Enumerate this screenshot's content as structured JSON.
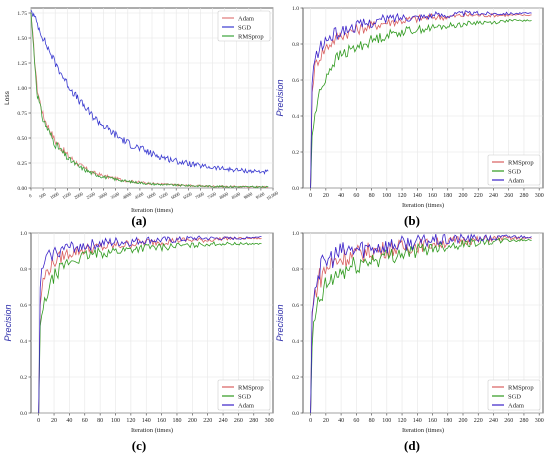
{
  "figure_labels": [
    "(a)",
    "(b)",
    "(c)",
    "(d)"
  ],
  "colors": {
    "Adam": "#3b22c9",
    "SGD": "#2f9a1e",
    "RMSprop": "#d95f5f",
    "SGD_a": "#c050c0",
    "Adam_a": "#e07a7a",
    "RMSprop_a": "#3aa23a",
    "loss_sgd": "#3b3bd0"
  },
  "chart_data": [
    {
      "id": "a",
      "type": "line",
      "title": "",
      "xlabel": "Iteration (times)",
      "ylabel": "Loss",
      "xlim": [
        0,
        10000
      ],
      "ylim": [
        0,
        1.8
      ],
      "x_ticks": [
        0,
        500,
        1000,
        1500,
        2000,
        2500,
        3000,
        3500,
        4000,
        4500,
        5000,
        5500,
        6000,
        6500,
        7000,
        7500,
        8000,
        8500,
        9000,
        9500,
        10000
      ],
      "x_tick_labels": [
        "0",
        "500",
        "1000",
        "1500",
        "2000",
        "2500",
        "3000",
        "3500",
        "4000",
        "4500",
        "5000",
        "5500",
        "6000",
        "6500",
        "7000",
        "7500",
        "8000",
        "8500",
        "9000",
        "9500",
        "10,000"
      ],
      "y_ticks": [
        0.0,
        0.25,
        0.5,
        0.75,
        1.0,
        1.25,
        1.5,
        1.75
      ],
      "y_tick_labels": [
        "0.00",
        "0.25",
        "0.50",
        "0.75",
        "1.00",
        "1.25",
        "1.50",
        "1.75"
      ],
      "grid": true,
      "legend_position": "top-right",
      "series": [
        {
          "name": "Adam",
          "color": "#e07a7a",
          "x": [
            0,
            250,
            500,
            1000,
            1500,
            2000,
            2500,
            3000,
            4000,
            5000,
            6000,
            7000,
            8000,
            9000,
            9800
          ],
          "y": [
            1.75,
            1.0,
            0.72,
            0.47,
            0.33,
            0.23,
            0.16,
            0.12,
            0.07,
            0.045,
            0.03,
            0.02,
            0.015,
            0.012,
            0.01
          ]
        },
        {
          "name": "SGD",
          "color": "#3b3bd0",
          "x": [
            0,
            250,
            500,
            1000,
            1500,
            2000,
            2500,
            3000,
            3500,
            4000,
            5000,
            6000,
            7000,
            8000,
            9000,
            9800
          ],
          "y": [
            1.78,
            1.65,
            1.5,
            1.25,
            1.04,
            0.87,
            0.73,
            0.62,
            0.53,
            0.45,
            0.34,
            0.27,
            0.22,
            0.19,
            0.17,
            0.16
          ]
        },
        {
          "name": "RMSprop",
          "color": "#3aa23a",
          "x": [
            0,
            250,
            500,
            1000,
            1500,
            2000,
            2500,
            3000,
            4000,
            5000,
            6000,
            7000,
            8000,
            9000,
            9800
          ],
          "y": [
            1.75,
            0.95,
            0.68,
            0.44,
            0.3,
            0.21,
            0.15,
            0.11,
            0.065,
            0.04,
            0.028,
            0.02,
            0.014,
            0.011,
            0.009
          ]
        }
      ]
    },
    {
      "id": "b",
      "type": "line",
      "title": "",
      "xlabel": "Iteration (times)",
      "ylabel": "Precision",
      "xlim": [
        -10,
        305
      ],
      "ylim": [
        0,
        1.0
      ],
      "x_ticks": [
        0,
        20,
        40,
        60,
        80,
        100,
        120,
        140,
        160,
        180,
        200,
        220,
        240,
        260,
        280,
        300
      ],
      "x_tick_labels": [
        "0",
        "20",
        "40",
        "60",
        "80",
        "100",
        "120",
        "140",
        "160",
        "180",
        "200",
        "220",
        "240",
        "260",
        "280",
        "300"
      ],
      "y_ticks": [
        0.0,
        0.2,
        0.4,
        0.6,
        0.8,
        1.0
      ],
      "y_tick_labels": [
        "0.0",
        "0.2",
        "0.4",
        "0.6",
        "0.8",
        "1.0"
      ],
      "grid": true,
      "legend_position": "bottom-right",
      "series": [
        {
          "name": "RMSprop",
          "color": "#d95f5f",
          "x": [
            0,
            2,
            5,
            10,
            20,
            30,
            40,
            60,
            80,
            100,
            120,
            140,
            160,
            180,
            200,
            220,
            240,
            260,
            290
          ],
          "y": [
            0.0,
            0.55,
            0.66,
            0.72,
            0.78,
            0.82,
            0.85,
            0.88,
            0.9,
            0.92,
            0.93,
            0.94,
            0.95,
            0.95,
            0.96,
            0.96,
            0.96,
            0.96,
            0.96
          ]
        },
        {
          "name": "SGD",
          "color": "#2f9a1e",
          "x": [
            0,
            2,
            5,
            10,
            20,
            30,
            40,
            60,
            80,
            100,
            120,
            140,
            160,
            180,
            200,
            220,
            240,
            260,
            290
          ],
          "y": [
            0.0,
            0.3,
            0.38,
            0.5,
            0.62,
            0.7,
            0.74,
            0.78,
            0.82,
            0.85,
            0.87,
            0.88,
            0.89,
            0.9,
            0.91,
            0.92,
            0.92,
            0.93,
            0.93
          ]
        },
        {
          "name": "Adam",
          "color": "#3b22c9",
          "x": [
            0,
            2,
            5,
            10,
            20,
            30,
            40,
            60,
            80,
            100,
            120,
            140,
            160,
            180,
            200,
            220,
            240,
            260,
            290
          ],
          "y": [
            0.0,
            0.6,
            0.7,
            0.76,
            0.82,
            0.85,
            0.87,
            0.9,
            0.92,
            0.94,
            0.95,
            0.95,
            0.96,
            0.96,
            0.97,
            0.97,
            0.97,
            0.97,
            0.97
          ]
        }
      ]
    },
    {
      "id": "c",
      "type": "line",
      "title": "",
      "xlabel": "Iteration (times)",
      "ylabel": "Precision",
      "xlim": [
        -10,
        305
      ],
      "ylim": [
        0,
        1.0
      ],
      "x_ticks": [
        0,
        20,
        40,
        60,
        80,
        100,
        120,
        140,
        160,
        180,
        200,
        220,
        240,
        260,
        280,
        300
      ],
      "x_tick_labels": [
        "0",
        "20",
        "40",
        "60",
        "80",
        "100",
        "120",
        "140",
        "160",
        "180",
        "200",
        "220",
        "240",
        "260",
        "280",
        "300"
      ],
      "y_ticks": [
        0.0,
        0.2,
        0.4,
        0.6,
        0.8,
        1.0
      ],
      "y_tick_labels": [
        "0.0",
        "0.2",
        "0.4",
        "0.6",
        "0.8",
        "1.0"
      ],
      "grid": true,
      "legend_position": "bottom-right",
      "series": [
        {
          "name": "RMSprop",
          "color": "#d95f5f",
          "x": [
            0,
            2,
            5,
            10,
            20,
            30,
            40,
            60,
            80,
            100,
            120,
            140,
            160,
            180,
            200,
            220,
            240,
            260,
            290
          ],
          "y": [
            0.0,
            0.62,
            0.72,
            0.78,
            0.84,
            0.87,
            0.89,
            0.91,
            0.92,
            0.93,
            0.94,
            0.95,
            0.95,
            0.96,
            0.96,
            0.96,
            0.97,
            0.97,
            0.97
          ]
        },
        {
          "name": "SGD",
          "color": "#2f9a1e",
          "x": [
            0,
            2,
            5,
            10,
            20,
            30,
            40,
            60,
            80,
            100,
            120,
            140,
            160,
            180,
            200,
            220,
            240,
            260,
            290
          ],
          "y": [
            0.0,
            0.5,
            0.55,
            0.65,
            0.76,
            0.81,
            0.84,
            0.87,
            0.89,
            0.9,
            0.91,
            0.92,
            0.92,
            0.93,
            0.93,
            0.94,
            0.94,
            0.94,
            0.94
          ]
        },
        {
          "name": "Adam",
          "color": "#3b22c9",
          "x": [
            0,
            2,
            5,
            10,
            20,
            30,
            40,
            60,
            80,
            100,
            120,
            140,
            160,
            180,
            200,
            220,
            240,
            260,
            290
          ],
          "y": [
            0.0,
            0.72,
            0.8,
            0.86,
            0.89,
            0.91,
            0.92,
            0.93,
            0.94,
            0.95,
            0.95,
            0.96,
            0.96,
            0.96,
            0.97,
            0.97,
            0.97,
            0.97,
            0.98
          ]
        }
      ]
    },
    {
      "id": "d",
      "type": "line",
      "title": "",
      "xlabel": "Iteration (times)",
      "ylabel": "Precision",
      "xlim": [
        -10,
        305
      ],
      "ylim": [
        0,
        1.0
      ],
      "x_ticks": [
        0,
        20,
        40,
        60,
        80,
        100,
        120,
        140,
        160,
        180,
        200,
        220,
        240,
        260,
        280,
        300
      ],
      "x_tick_labels": [
        "0",
        "20",
        "40",
        "60",
        "80",
        "100",
        "120",
        "140",
        "160",
        "180",
        "200",
        "220",
        "240",
        "260",
        "280",
        "300"
      ],
      "y_ticks": [
        0.0,
        0.2,
        0.4,
        0.6,
        0.8,
        1.0
      ],
      "y_tick_labels": [
        "0.0",
        "0.2",
        "0.4",
        "0.6",
        "0.8",
        "1.0"
      ],
      "grid": true,
      "legend_position": "bottom-right",
      "series": [
        {
          "name": "RMSprop",
          "color": "#d95f5f",
          "x": [
            0,
            2,
            5,
            10,
            20,
            30,
            40,
            60,
            80,
            100,
            120,
            140,
            160,
            180,
            200,
            220,
            240,
            260,
            290
          ],
          "y": [
            0.0,
            0.55,
            0.66,
            0.74,
            0.8,
            0.84,
            0.86,
            0.88,
            0.9,
            0.91,
            0.92,
            0.93,
            0.94,
            0.95,
            0.96,
            0.96,
            0.97,
            0.97,
            0.97
          ]
        },
        {
          "name": "SGD",
          "color": "#2f9a1e",
          "x": [
            0,
            2,
            5,
            10,
            20,
            30,
            40,
            60,
            80,
            100,
            120,
            140,
            160,
            180,
            200,
            220,
            240,
            260,
            290
          ],
          "y": [
            0.0,
            0.38,
            0.5,
            0.6,
            0.7,
            0.75,
            0.78,
            0.82,
            0.85,
            0.87,
            0.89,
            0.9,
            0.92,
            0.93,
            0.94,
            0.95,
            0.95,
            0.96,
            0.96
          ]
        },
        {
          "name": "Adam",
          "color": "#3b22c9",
          "x": [
            0,
            2,
            5,
            10,
            20,
            30,
            40,
            60,
            80,
            100,
            120,
            140,
            160,
            180,
            200,
            220,
            240,
            260,
            290
          ],
          "y": [
            0.0,
            0.58,
            0.7,
            0.78,
            0.84,
            0.87,
            0.89,
            0.91,
            0.92,
            0.93,
            0.94,
            0.95,
            0.96,
            0.96,
            0.97,
            0.97,
            0.97,
            0.98,
            0.98
          ]
        }
      ]
    }
  ]
}
